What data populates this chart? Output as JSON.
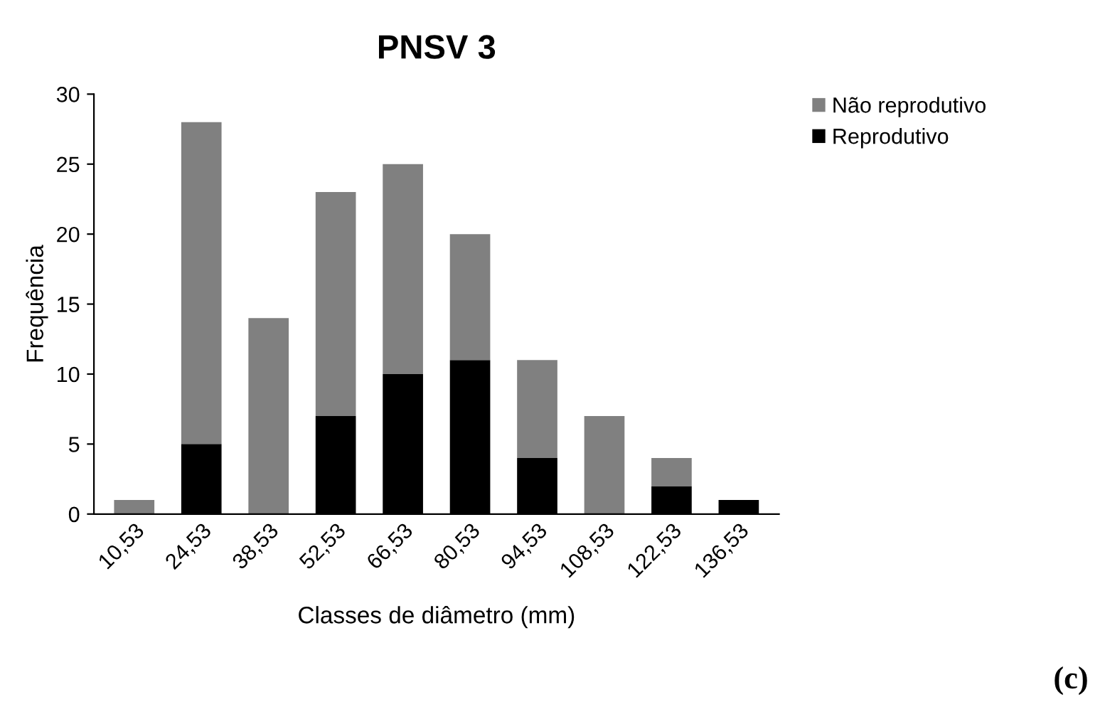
{
  "chart_data": {
    "type": "bar",
    "title": "PNSV 3",
    "xlabel": "Classes de diâmetro (mm)",
    "ylabel": "Frequência",
    "categories": [
      "10,53",
      "24,53",
      "38,53",
      "52,53",
      "66,53",
      "80,53",
      "94,53",
      "108,53",
      "122,53",
      "136,53"
    ],
    "stacked": true,
    "series": [
      {
        "name": "Reprodutivo",
        "color": "#000000",
        "values": [
          0,
          5,
          0,
          7,
          10,
          11,
          4,
          0,
          2,
          1
        ]
      },
      {
        "name": "Não reprodutivo",
        "color": "#808080",
        "values": [
          1,
          23,
          14,
          16,
          15,
          9,
          7,
          7,
          2,
          0
        ]
      }
    ],
    "ylim": [
      0,
      30
    ],
    "yticks": [
      0,
      5,
      10,
      15,
      20,
      25,
      30
    ],
    "grid": false,
    "legend": "top right",
    "annotations": [
      "(c)"
    ]
  }
}
